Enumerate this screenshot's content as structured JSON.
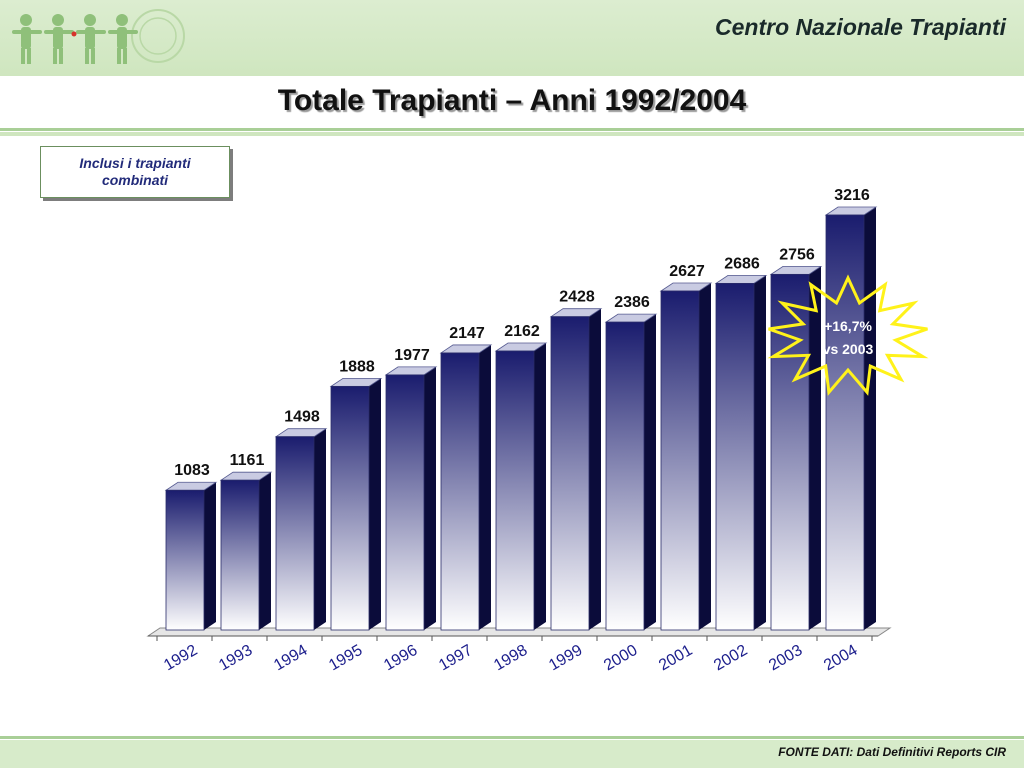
{
  "header": {
    "org_name": "Centro Nazionale Trapianti",
    "logo_icon": "people-figures-logo-icon",
    "band_color": "#cfe6bf"
  },
  "page_title": "Totale Trapianti – Anni 1992/2004",
  "note": "Inclusi i trapianti combinati",
  "annotation": {
    "line1": "+16,7%",
    "line2": "vs 2003"
  },
  "source": "FONTE DATI: Dati Definitivi Reports CIR",
  "colors": {
    "bar_top": "#1a1c6e",
    "bar_bottom": "#ffffff",
    "bar_side": "#0b0c3a",
    "tick_label": "#1c1e8c",
    "burst_stroke": "#fff21a"
  },
  "chart_data": {
    "type": "bar",
    "categories": [
      "1992",
      "1993",
      "1994",
      "1995",
      "1996",
      "1997",
      "1998",
      "1999",
      "2000",
      "2001",
      "2002",
      "2003",
      "2004"
    ],
    "values": [
      1083,
      1161,
      1498,
      1888,
      1977,
      2147,
      2162,
      2428,
      2386,
      2627,
      2686,
      2756,
      3216
    ],
    "title": "",
    "xlabel": "",
    "ylabel": "",
    "ylim": [
      0,
      3216
    ],
    "grid": false,
    "legend": "none"
  }
}
